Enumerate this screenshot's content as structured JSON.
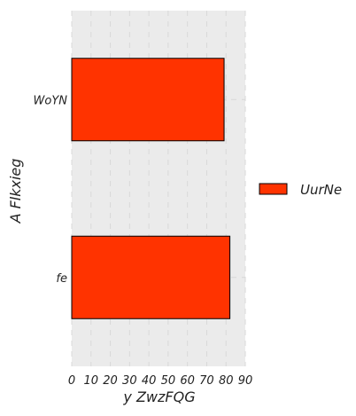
{
  "chart_data": {
    "type": "bar",
    "orientation": "horizontal",
    "categories": [
      "WoYN",
      "fe"
    ],
    "series": [
      {
        "name": "UurNe",
        "values": [
          79,
          82
        ],
        "color": "#ff3300"
      }
    ],
    "xlabel": "y ZwzFQG",
    "ylabel": "A Flkxieg",
    "xlim": [
      0,
      90
    ],
    "xticks": [
      0,
      10,
      20,
      30,
      40,
      50,
      60,
      70,
      80,
      90
    ],
    "grid": true,
    "legend_position": "right",
    "background_color": "#ebebeb"
  }
}
